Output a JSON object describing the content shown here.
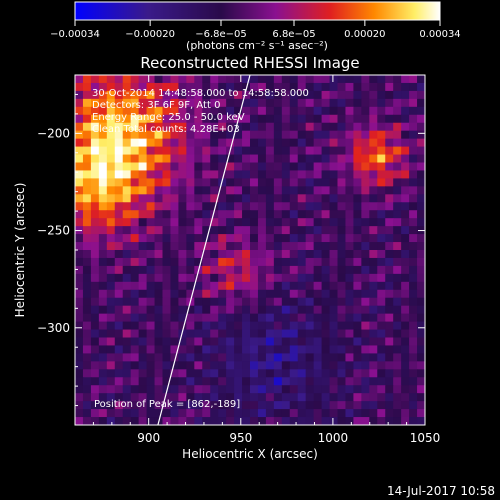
{
  "chart_data": {
    "type": "heatmap",
    "title": "Reconstructed RHESSI Image",
    "xlabel": "Heliocentric X (arcsec)",
    "ylabel": "Heliocentric Y (arcsec)",
    "xlim": [
      860,
      1050
    ],
    "ylim": [
      -350,
      -170
    ],
    "x_ticks": [
      900,
      950,
      1000,
      1050
    ],
    "x_tick_labels": [
      "900",
      "950",
      "1000",
      "1050"
    ],
    "y_ticks": [
      -200,
      -250,
      -300
    ],
    "y_tick_labels": [
      "−200",
      "−250",
      "−300"
    ],
    "colorbar": {
      "min": -0.00034,
      "max": 0.00034,
      "ticks": [
        -0.00034,
        -0.0002,
        -6.8e-05,
        6.8e-05,
        0.0002,
        0.00034
      ],
      "tick_labels": [
        "−0.00034",
        "−0.00020",
        "−6.8e−05",
        "6.8e−05",
        "0.00020",
        "0.00034"
      ],
      "unit_label": "(photons cm⁻² s⁻¹ asec⁻²)",
      "colors": [
        "#0000ff",
        "#3a1a8a",
        "#2a0a4a",
        "#8a1090",
        "#e02020",
        "#ff8800",
        "#ffee66",
        "#ffffff"
      ]
    },
    "annotations": [
      "30-Oct-2014 14:48:58.000 to 14:58:58.000",
      "Detectors: 3F 6F 9F, Att 0",
      "Energy Range: 25.0 - 50.0 keV",
      "Clean     Total counts: 4.28E+03"
    ],
    "peak_label": "Position of Peak = [862,-189]",
    "peak": [
      862,
      -189
    ],
    "limb_line": [
      [
        905,
        -350
      ],
      [
        955,
        -170
      ]
    ],
    "grid": false
  },
  "footer": {
    "timestamp": "14-Jul-2017 10:58"
  }
}
